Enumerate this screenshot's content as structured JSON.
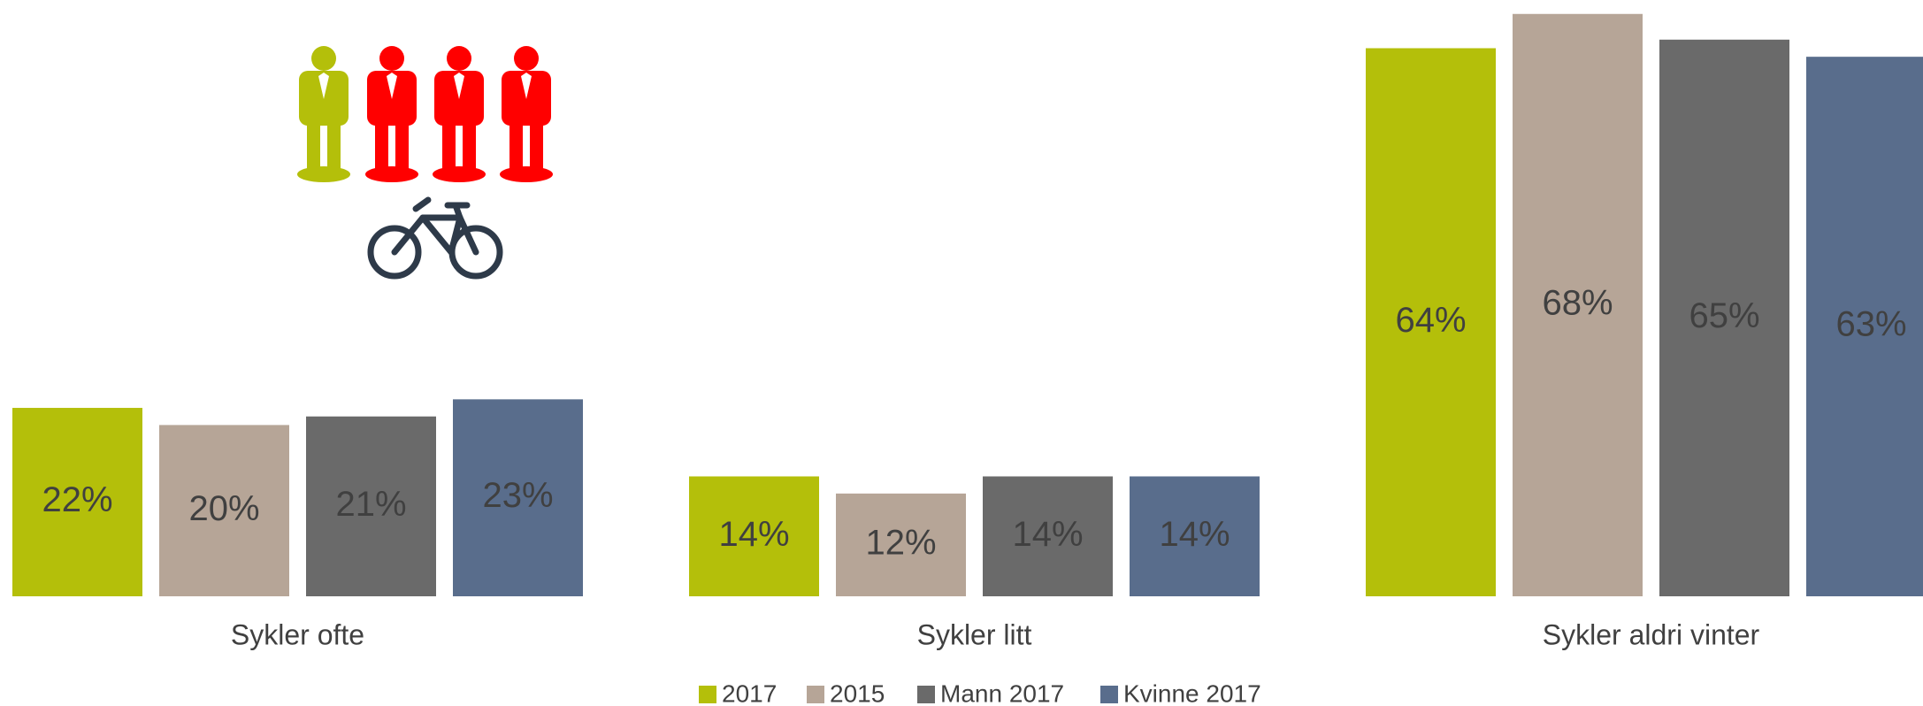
{
  "chart_data": {
    "type": "bar",
    "categories": [
      "Sykler ofte",
      "Sykler litt",
      "Sykler aldri vinter"
    ],
    "series": [
      {
        "name": "2017",
        "color": "#b4bf0a",
        "values": [
          22,
          14,
          64
        ],
        "value_labels": [
          "22%",
          "14%",
          "64%"
        ]
      },
      {
        "name": "2015",
        "color": "#b6a597",
        "values": [
          20,
          12,
          68
        ],
        "value_labels": [
          "20%",
          "12%",
          "68%"
        ]
      },
      {
        "name": "Mann 2017",
        "color": "#6a6a6a",
        "values": [
          21,
          14,
          65
        ],
        "value_labels": [
          "21%",
          "14%",
          "65%"
        ]
      },
      {
        "name": "Kvinne 2017",
        "color": "#596d8c",
        "values": [
          23,
          14,
          63
        ],
        "value_labels": [
          "23%",
          "14%",
          "63%"
        ]
      }
    ],
    "legend": "bottom"
  }
}
